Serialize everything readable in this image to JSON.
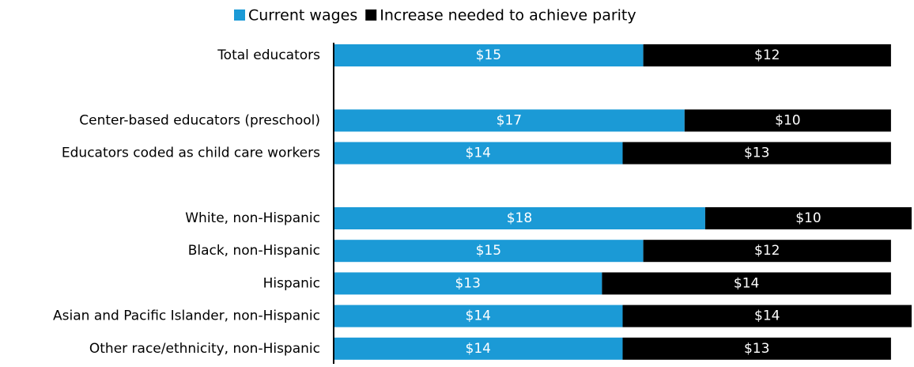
{
  "chart_data": {
    "type": "stacked-barh",
    "categories": [
      "Total educators",
      null,
      "Center-based educators (preschool)",
      "Educators coded as child care workers",
      null,
      "White, non-Hispanic",
      "Black, non-Hispanic",
      "Hispanic",
      "Asian and Pacific Islander, non-Hispanic",
      "Other race/ethnicity, non-Hispanic"
    ],
    "series": [
      {
        "name": "Current wages",
        "color": "#1b9ad6",
        "values": [
          15,
          null,
          17,
          14,
          null,
          18,
          15,
          13,
          14,
          14
        ],
        "value_labels": [
          "$15",
          null,
          "$17",
          "$14",
          null,
          "$18",
          "$15",
          "$13",
          "$14",
          "$14"
        ]
      },
      {
        "name": "Increase needed to achieve parity",
        "color": "#000000",
        "values": [
          12,
          null,
          10,
          13,
          null,
          10,
          12,
          14,
          14,
          13
        ],
        "value_labels": [
          "$12",
          null,
          "$10",
          "$13",
          null,
          "$10",
          "$12",
          "$14",
          "$14",
          "$13"
        ]
      }
    ],
    "xlim": [
      0,
      28
    ],
    "legend": "top"
  }
}
